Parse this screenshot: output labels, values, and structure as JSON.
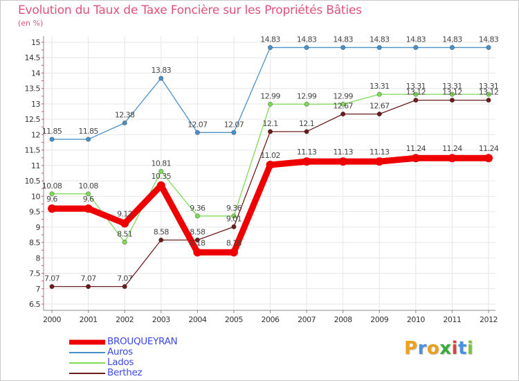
{
  "chart_data": {
    "type": "line",
    "title": "Evolution du Taux de Taxe Foncière sur les Propriétés Bâties",
    "ylabel": "(en %)",
    "xlabel": "",
    "categories": [
      "2000",
      "2001",
      "2002",
      "2003",
      "2004",
      "2005",
      "2006",
      "2007",
      "2008",
      "2009",
      "2010",
      "2011",
      "2012"
    ],
    "ylim": [
      6.5,
      15
    ],
    "yticks": [
      "6.5",
      "7",
      "7.5",
      "8",
      "8.5",
      "9",
      "9.5",
      "10",
      "10.5",
      "11",
      "11.5",
      "12",
      "12.5",
      "13",
      "13.5",
      "14",
      "14.5",
      "15"
    ],
    "grid": true,
    "series": [
      {
        "name": "Auros",
        "color": "#4a90c8",
        "values": [
          11.85,
          11.85,
          12.38,
          13.83,
          12.07,
          12.07,
          14.83,
          14.83,
          14.83,
          14.83,
          14.83,
          14.83,
          14.83
        ],
        "labels": [
          "11.85",
          "11.85",
          "12.38",
          "13.83",
          "12.07",
          "12.07",
          "14.83",
          "14.83",
          "14.83",
          "14.83",
          "14.83",
          "14.83",
          "14.83"
        ]
      },
      {
        "name": "Lados",
        "color": "#7ed957",
        "values": [
          10.08,
          10.08,
          8.51,
          10.81,
          9.36,
          9.36,
          12.99,
          12.99,
          12.99,
          13.31,
          13.31,
          13.31,
          13.31
        ],
        "labels": [
          "10.08",
          "10.08",
          "8.51",
          "10.81",
          "9.36",
          "9.36",
          "12.99",
          "12.99",
          "12.99",
          "13.31",
          "13.31",
          "13.31",
          "13.31"
        ]
      },
      {
        "name": "Berthez",
        "color": "#6b1c1c",
        "values": [
          7.07,
          7.07,
          7.07,
          8.58,
          8.58,
          9.01,
          12.1,
          12.1,
          12.67,
          12.67,
          13.12,
          13.12,
          13.12
        ],
        "labels": [
          "7.07",
          "7.07",
          "7.07",
          "8.58",
          "8.58",
          "9.01",
          "12.1",
          "12.1",
          "12.67",
          "12.67",
          "13.12",
          "13.12",
          "13.12"
        ]
      },
      {
        "name": "BROUQUEYRAN",
        "color": "#ee0000",
        "values": [
          9.6,
          9.6,
          9.12,
          10.35,
          8.18,
          8.18,
          11.02,
          11.13,
          11.13,
          11.13,
          11.24,
          11.24,
          11.24
        ],
        "labels": [
          "9.6",
          "9.6",
          "9.12",
          "10.35",
          "8.18",
          "8.18",
          "11.02",
          "11.13",
          "11.13",
          "11.13",
          "11.24",
          "11.24",
          "11.24"
        ]
      }
    ],
    "legend": [
      {
        "name": "BROUQUEYRAN",
        "color": "#ee0000"
      },
      {
        "name": "Auros",
        "color": "#4a90c8"
      },
      {
        "name": "Lados",
        "color": "#7ed957"
      },
      {
        "name": "Berthez",
        "color": "#6b1c1c"
      }
    ],
    "legend_position": "bottom-left"
  },
  "logo": {
    "text": "Proxiti",
    "letters": [
      {
        "ch": "P",
        "color": "#f0a020"
      },
      {
        "ch": "r",
        "color": "#4a90e2"
      },
      {
        "ch": "o",
        "color": "#e8a020"
      },
      {
        "ch": "x",
        "color": "#3aaa3a"
      },
      {
        "ch": "i",
        "color": "#e04040"
      },
      {
        "ch": "t",
        "color": "#4a90e2"
      },
      {
        "ch": "i",
        "color": "#80c040"
      }
    ]
  }
}
